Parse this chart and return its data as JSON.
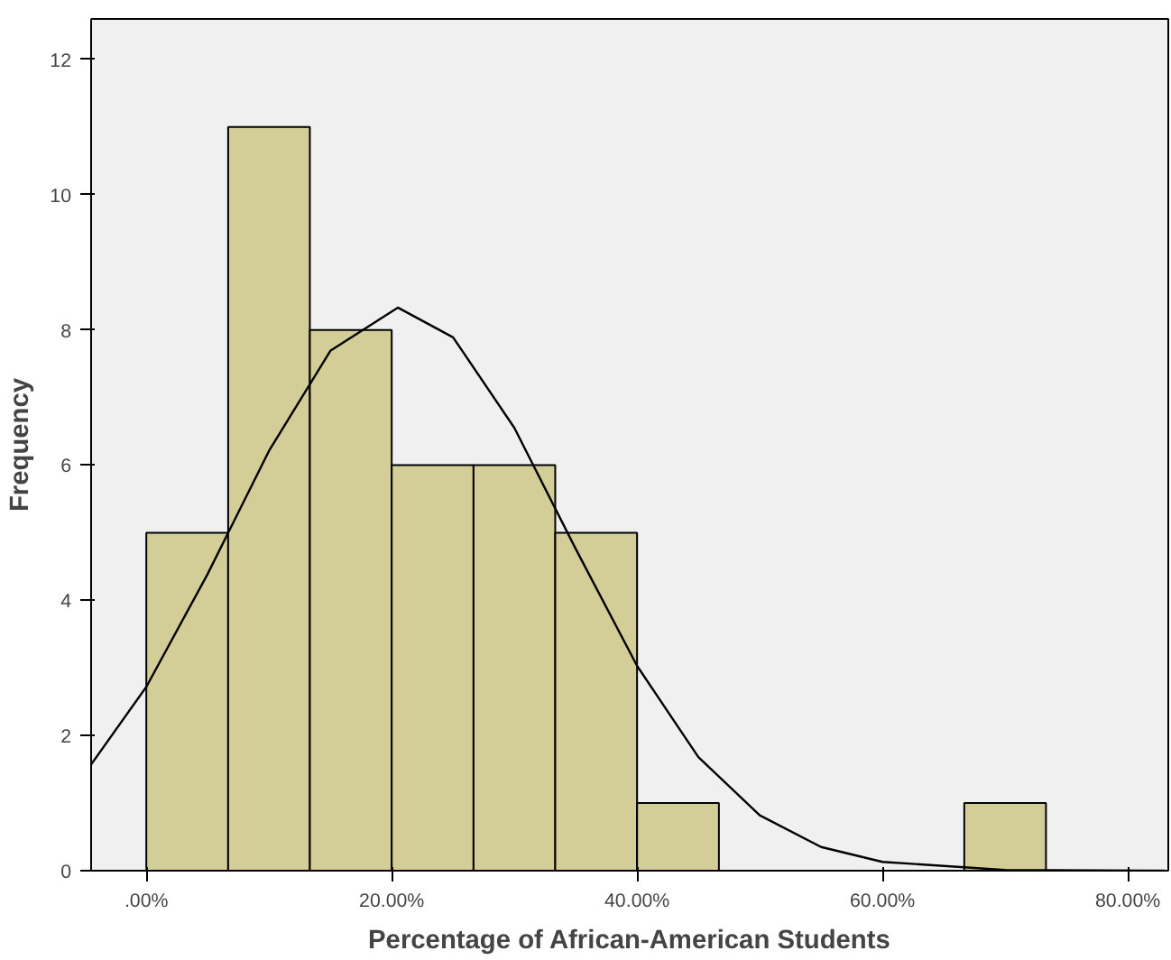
{
  "chart_data": {
    "type": "histogram",
    "xlabel": "Percentage of African-American Students",
    "ylabel": "Frequency",
    "bins": [
      0,
      6.67,
      13.33,
      20,
      26.67,
      33.33,
      40,
      46.67,
      53.33,
      60,
      66.67,
      73.33
    ],
    "values": [
      5,
      11,
      8,
      6,
      6,
      5,
      1,
      0,
      0,
      0,
      1
    ],
    "color": "#d3ce97",
    "series": [
      {
        "type": "line",
        "color": "#000000",
        "x": [
          -4.5,
          0,
          5,
          10,
          15,
          20.5,
          25,
          30,
          35,
          40,
          45,
          50,
          55,
          60,
          70,
          83
        ],
        "values": [
          1.57,
          2.72,
          4.39,
          6.21,
          7.69,
          8.33,
          7.89,
          6.55,
          4.76,
          3.03,
          1.68,
          0.82,
          0.35,
          0.13,
          0.01,
          0
        ]
      }
    ],
    "xlim": [
      -4.5,
      83.3
    ],
    "ylim": [
      0,
      12.6
    ],
    "xticks": [
      {
        "value": 0,
        "label": ".00%"
      },
      {
        "value": 20,
        "label": "20.00%"
      },
      {
        "value": 40,
        "label": "40.00%"
      },
      {
        "value": 60,
        "label": "60.00%"
      },
      {
        "value": 80,
        "label": "80.00%"
      }
    ],
    "yticks": [
      0,
      2,
      4,
      6,
      8,
      10,
      12
    ],
    "grid": false
  }
}
